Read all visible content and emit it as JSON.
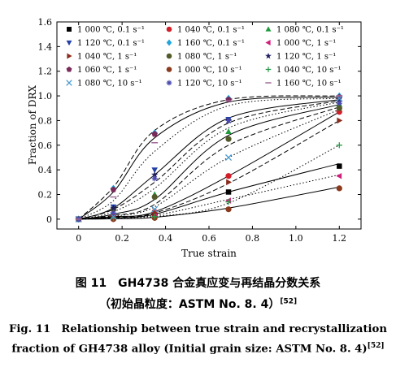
{
  "chart_data": {
    "type": "line",
    "xlabel": "True strain",
    "ylabel": "Fraction of DRX",
    "xlim": [
      -0.1,
      1.3
    ],
    "ylim": [
      -0.08,
      1.6
    ],
    "xticks": [
      "0",
      "0.2",
      "0.4",
      "0.6",
      "0.8",
      "1.0",
      "1.2"
    ],
    "yticks": [
      "0",
      "0.2",
      "0.4",
      "0.6",
      "0.8",
      "1.0",
      "1.2",
      "1.4",
      "1.6"
    ],
    "grid": false,
    "legend_position": "top, inside plot, 3 columns",
    "x": [
      0,
      0.16,
      0.35,
      0.69,
      1.2
    ],
    "series": [
      {
        "name": "1 000 ℃, 0.1 s⁻¹",
        "marker": "square",
        "color": "#000000",
        "values": [
          0,
          0.02,
          0.04,
          0.22,
          0.43
        ]
      },
      {
        "name": "1 040 ℃, 0.1 s⁻¹",
        "marker": "circle",
        "color": "#d21f2a",
        "values": [
          0,
          0.03,
          0.06,
          0.35,
          0.87
        ]
      },
      {
        "name": "1 080 ℃, 0.1 s⁻¹",
        "marker": "triangle-up",
        "color": "#1e9a3c",
        "values": [
          0,
          0.09,
          0.2,
          0.71,
          0.93
        ]
      },
      {
        "name": "1 120 ℃, 0.1 s⁻¹",
        "marker": "triangle-down",
        "color": "#2340a8",
        "values": [
          0,
          0.1,
          0.4,
          0.81,
          0.97
        ]
      },
      {
        "name": "1 160 ℃, 0.1 s⁻¹",
        "marker": "diamond",
        "color": "#1fa4dc",
        "values": [
          0,
          0.25,
          0.7,
          0.98,
          1.0
        ]
      },
      {
        "name": "1 000 ℃, 1 s⁻¹",
        "marker": "triangle-left",
        "color": "#d0207e",
        "values": [
          0,
          0.01,
          0.03,
          0.15,
          0.35
        ]
      },
      {
        "name": "1 040 ℃, 1 s⁻¹",
        "marker": "triangle-right",
        "color": "#8a2c1c",
        "values": [
          0,
          0.02,
          0.05,
          0.3,
          0.8
        ]
      },
      {
        "name": "1 080 ℃, 1 s⁻¹",
        "marker": "circle",
        "color": "#54592a",
        "values": [
          0,
          0.08,
          0.18,
          0.65,
          0.9
        ]
      },
      {
        "name": "1 120 ℃, 1 s⁻¹",
        "marker": "star",
        "color": "#1d1d5e",
        "values": [
          0,
          0.09,
          0.36,
          0.8,
          0.95
        ]
      },
      {
        "name": "1 060 ℃, 1 s⁻¹",
        "marker": "pentagon",
        "color": "#7a2a5a",
        "values": [
          0,
          0.24,
          0.69,
          0.97,
          0.99
        ]
      },
      {
        "name": "1 000 ℃, 10 s⁻¹",
        "marker": "circle",
        "color": "#8b3a1e",
        "values": [
          0,
          0.0,
          0.01,
          0.08,
          0.25
        ]
      },
      {
        "name": "1 040 ℃, 10 s⁻¹",
        "marker": "plus",
        "color": "#2a9a4a",
        "values": [
          0,
          0.01,
          0.02,
          0.14,
          0.6
        ]
      },
      {
        "name": "1 080 ℃, 10 s⁻¹",
        "marker": "x",
        "color": "#4a9ad0",
        "values": [
          0,
          0.02,
          0.08,
          0.5,
          0.98
        ]
      },
      {
        "name": "1 120 ℃, 10 s⁻¹",
        "marker": "asterisk",
        "color": "#4a4ab0",
        "values": [
          0,
          0.05,
          0.33,
          0.8,
          0.94
        ]
      },
      {
        "name": "1 160 ℃, 10 s⁻¹",
        "marker": "dash",
        "color": "#a06a9a",
        "values": [
          0,
          0.18,
          0.62,
          0.96,
          1.0
        ]
      }
    ],
    "fit_curves": [
      {
        "style": "dashed",
        "values": [
          0,
          0.26,
          0.72,
          0.97,
          1.0
        ]
      },
      {
        "style": "solid",
        "values": [
          0,
          0.22,
          0.66,
          0.95,
          0.99
        ]
      },
      {
        "style": "dotted",
        "values": [
          0,
          0.15,
          0.55,
          0.92,
          0.98
        ]
      },
      {
        "style": "solid",
        "values": [
          0,
          0.09,
          0.36,
          0.82,
          0.97
        ]
      },
      {
        "style": "dashed",
        "values": [
          0,
          0.08,
          0.3,
          0.78,
          0.96
        ]
      },
      {
        "style": "dotted",
        "values": [
          0,
          0.06,
          0.25,
          0.74,
          0.95
        ]
      },
      {
        "style": "solid",
        "values": [
          0,
          0.04,
          0.16,
          0.68,
          0.93
        ]
      },
      {
        "style": "dashed",
        "values": [
          0,
          0.03,
          0.12,
          0.6,
          0.91
        ]
      },
      {
        "style": "dotted",
        "values": [
          0,
          0.025,
          0.1,
          0.5,
          0.89
        ]
      },
      {
        "style": "solid",
        "values": [
          0,
          0.02,
          0.06,
          0.35,
          0.87
        ]
      },
      {
        "style": "dashed",
        "values": [
          0,
          0.015,
          0.05,
          0.29,
          0.8
        ]
      },
      {
        "style": "solid",
        "values": [
          0,
          0.01,
          0.04,
          0.22,
          0.45
        ]
      },
      {
        "style": "dotted",
        "values": [
          0,
          0.01,
          0.03,
          0.16,
          0.36
        ]
      },
      {
        "style": "dotted",
        "values": [
          0,
          0.005,
          0.02,
          0.13,
          0.6
        ]
      },
      {
        "style": "solid",
        "values": [
          0,
          0.003,
          0.015,
          0.09,
          0.26
        ]
      }
    ]
  },
  "caption": {
    "zh_line1": "图 11　GH4738 合金真应变与再结晶分数关系",
    "zh_line2": "（初始晶粒度：ASTM No. 8. 4）",
    "zh_ref": "[52]",
    "en_line1": "Fig. 11　Relationship between true strain and recrystallization",
    "en_line2": "fraction of GH4738 alloy (Initial grain size: ASTM No. 8. 4)",
    "en_ref": "[52]"
  }
}
